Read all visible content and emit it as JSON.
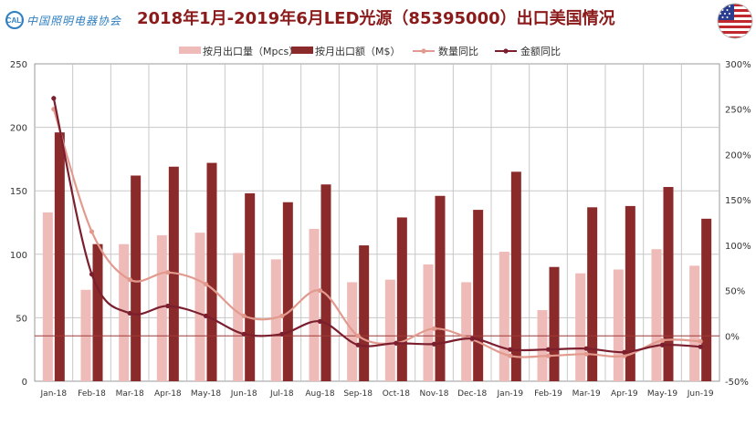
{
  "header": {
    "logo_text": "中国照明电器协会",
    "logo_mark": "CALI",
    "title": "2018年1月-2019年6月LED光源（85395000）出口美国情况"
  },
  "flag_icon": "us-flag-icon",
  "colors": {
    "qty_bar": "#eebbb8",
    "amt_bar": "#8b2a2a",
    "qty_line": "#e39a8e",
    "amt_line": "#7b1f2f",
    "title": "#8b1a1a",
    "grid": "#c8c8c8",
    "zero_line": "#9e3a3a"
  },
  "chart_data": {
    "type": "bar",
    "title": "2018年1月-2019年6月LED光源（85395000）出口美国情况",
    "categories": [
      "Jan-18",
      "Feb-18",
      "Mar-18",
      "Apr-18",
      "May-18",
      "Jun-18",
      "Jul-18",
      "Aug-18",
      "Sep-18",
      "Oct-18",
      "Nov-18",
      "Dec-18",
      "Jan-19",
      "Feb-19",
      "Mar-19",
      "Apr-19",
      "May-19",
      "Jun-19"
    ],
    "ylim": [
      0,
      250
    ],
    "yticks": [
      0,
      50,
      100,
      150,
      200,
      250
    ],
    "y2lim": [
      -50,
      300
    ],
    "y2ticks": [
      -50,
      0,
      50,
      100,
      150,
      200,
      250,
      300
    ],
    "y2tick_labels": [
      "-50%",
      "0%",
      "50%",
      "100%",
      "150%",
      "200%",
      "250%",
      "300%"
    ],
    "grid": true,
    "legend_position": "top",
    "series": [
      {
        "name": "按月出口量（Mpcs）",
        "type": "bar",
        "axis": "left",
        "values": [
          133,
          72,
          108,
          115,
          117,
          101,
          96,
          120,
          78,
          80,
          92,
          78,
          102,
          56,
          85,
          88,
          104,
          91
        ]
      },
      {
        "name": "按月出口额（M$）",
        "type": "bar",
        "axis": "left",
        "values": [
          196,
          108,
          162,
          169,
          172,
          148,
          141,
          155,
          107,
          129,
          146,
          135,
          165,
          90,
          137,
          138,
          153,
          128
        ]
      },
      {
        "name": "数量同比",
        "type": "line",
        "axis": "right",
        "unit": "%",
        "values": [
          250,
          115,
          62,
          70,
          57,
          22,
          22,
          50,
          0,
          -8,
          8,
          -4,
          -22,
          -22,
          -20,
          -22,
          -5,
          -6
        ]
      },
      {
        "name": "金额同比",
        "type": "line",
        "axis": "right",
        "unit": "%",
        "values": [
          262,
          68,
          25,
          33,
          22,
          2,
          2,
          16,
          -10,
          -8,
          -9,
          -3,
          -15,
          -15,
          -14,
          -18,
          -10,
          -12
        ]
      }
    ]
  }
}
